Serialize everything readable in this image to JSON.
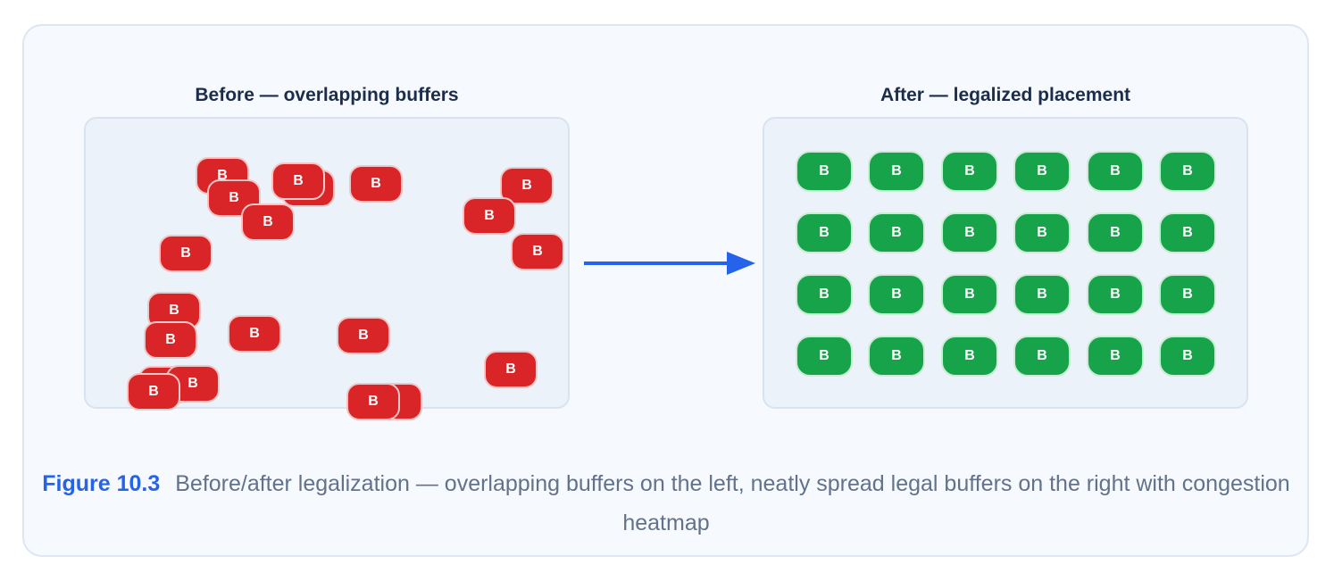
{
  "figure": {
    "label": "Figure 10.3",
    "caption": "Before/after legalization — overlapping buffers on the left, neatly spread legal buffers on the right with congestion heatmap"
  },
  "before_panel": {
    "title": "Before — overlapping buffers",
    "buffer_label": "B",
    "buffer_count": 20
  },
  "after_panel": {
    "title": "After — legalized placement",
    "buffer_label": "B",
    "rows": 4,
    "cols": 6
  },
  "colors": {
    "card_bg": "#f6f9fd",
    "panel_bg": "#ecf2fa",
    "overlap_buffer": "#d92527",
    "legal_buffer": "#17a34a",
    "arrow": "#2563eb",
    "figure_label": "#2563eb",
    "caption_text": "#62728a",
    "title_text": "#1b2d4a"
  },
  "icons": {
    "transition": "right-arrow-icon"
  }
}
